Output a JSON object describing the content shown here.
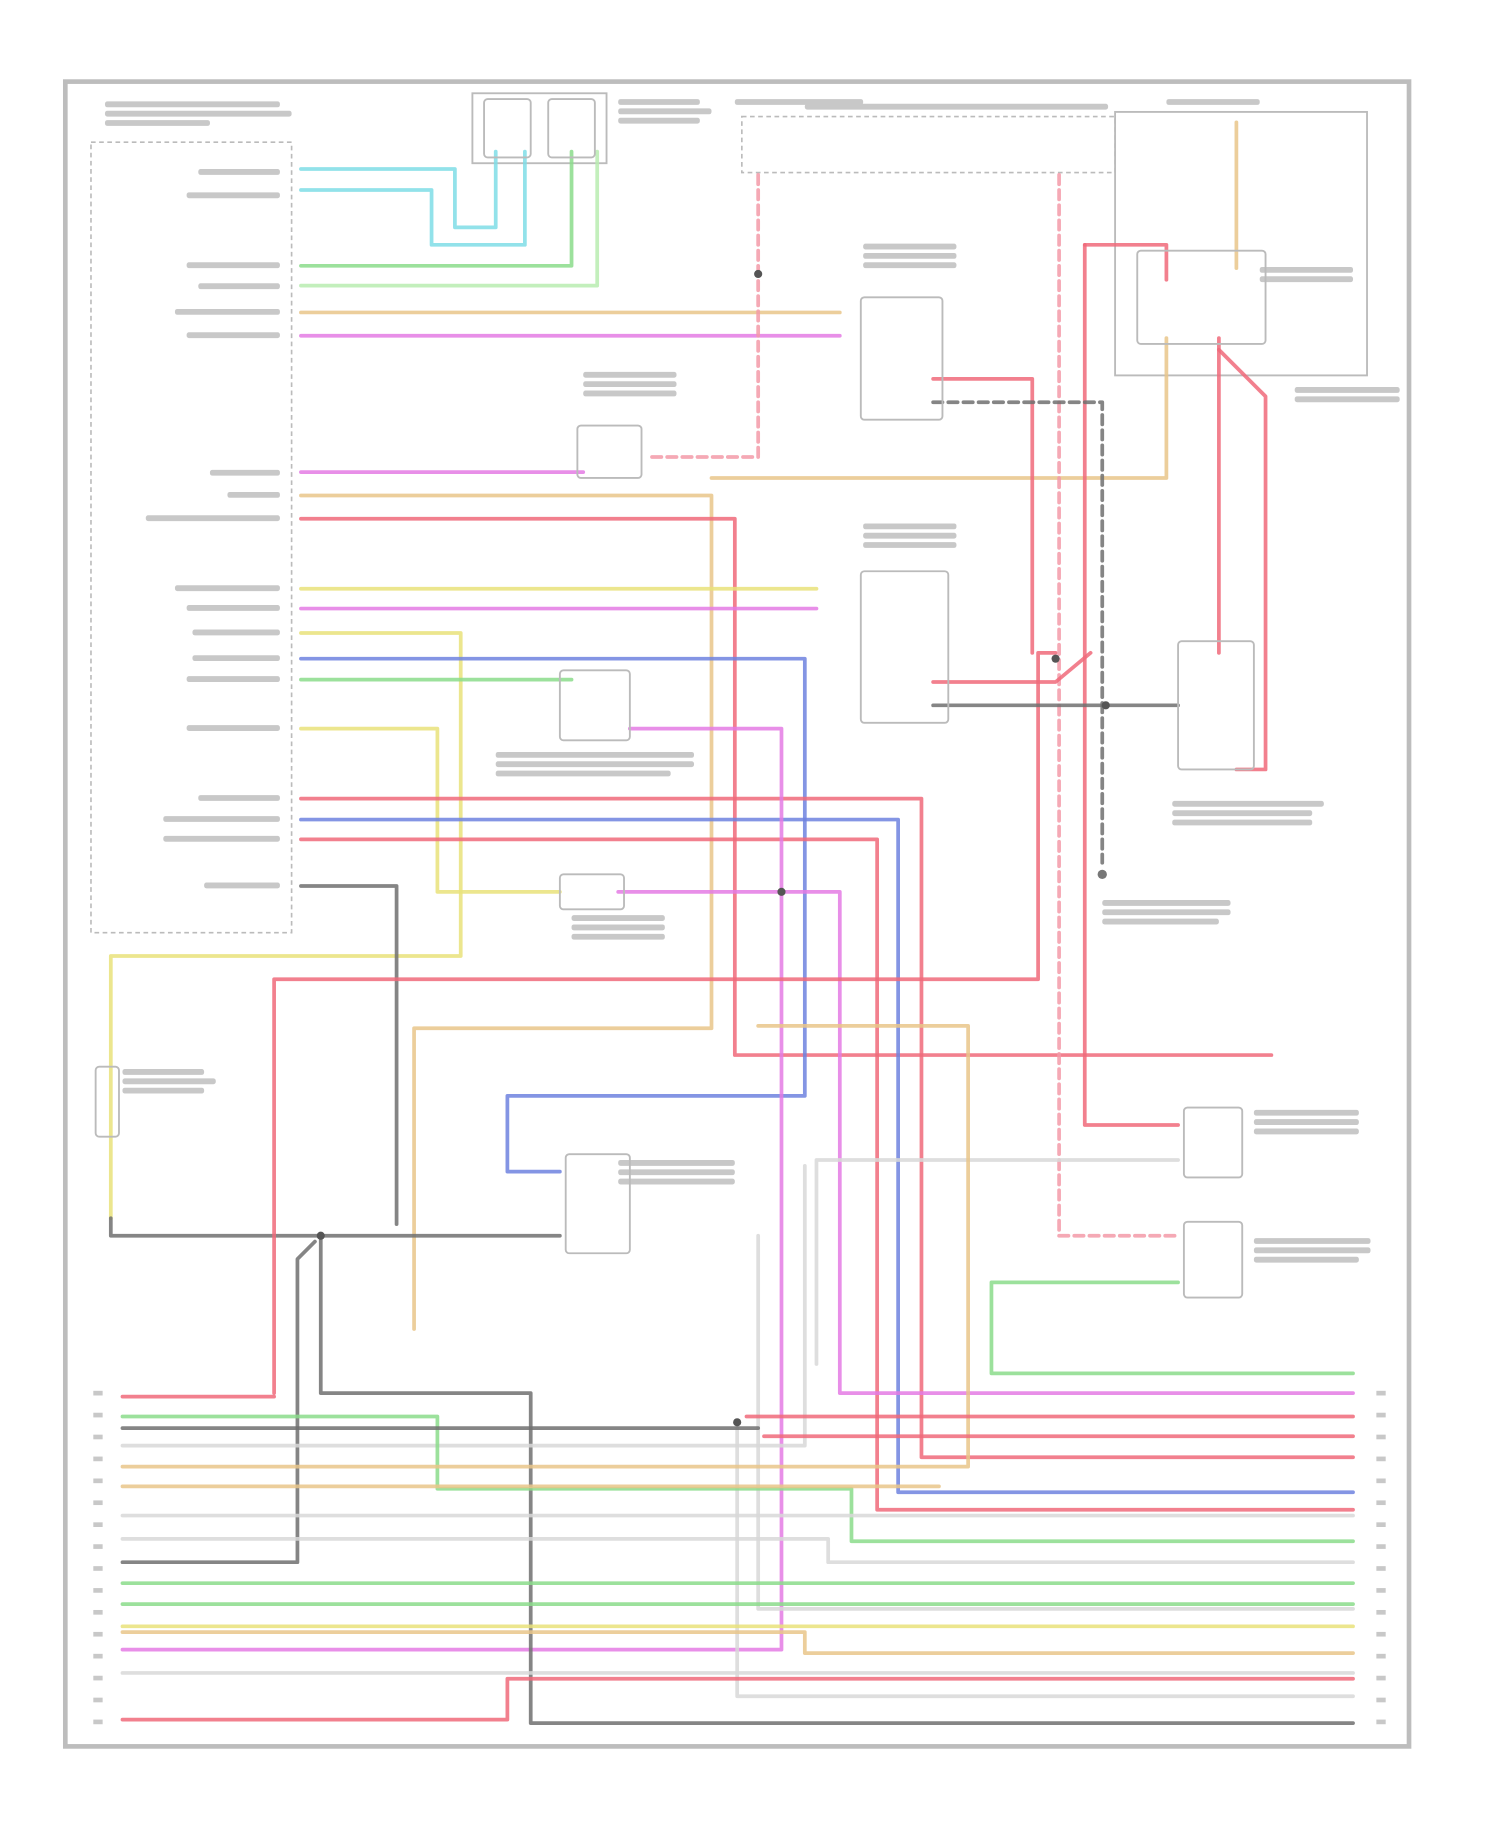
{
  "diagram": {
    "type": "wiring-schematic",
    "wire_colors": {
      "red": "#f06a7a",
      "pink": "#f39aa8",
      "magenta": "#e47be4",
      "cyan": "#7fdde6",
      "green": "#8bdc8b",
      "light_green": "#b8ecb0",
      "yellow": "#e9e27a",
      "tan": "#e9c68a",
      "blue": "#6f82df",
      "gray": "#707070",
      "white": "#d8d8d8"
    },
    "frame_color": "#bdbdbd",
    "components": [
      {
        "name": "module",
        "icon": "module-box-icon"
      },
      {
        "name": "sensor",
        "icon": "sensor-icon"
      },
      {
        "name": "relay",
        "icon": "relay-icon"
      },
      {
        "name": "solenoid",
        "icon": "solenoid-icon"
      },
      {
        "name": "switch",
        "icon": "switch-icon"
      },
      {
        "name": "connector",
        "icon": "connector-icon"
      },
      {
        "name": "ground",
        "icon": "ground-icon"
      }
    ],
    "bottom_connector_pin_count": 16
  }
}
